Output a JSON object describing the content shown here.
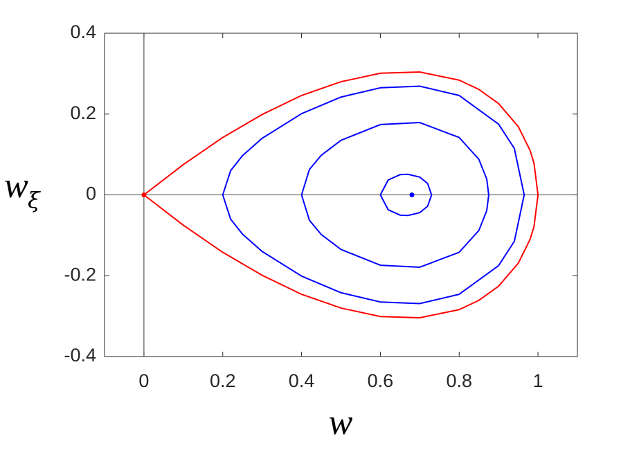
{
  "chart_data": {
    "type": "line",
    "x_label": "w",
    "y_label": "w",
    "y_label_subscript": "ξ",
    "xlim": [
      -0.1,
      1.1
    ],
    "xticks": [
      0,
      0.2,
      0.4,
      0.6,
      0.8,
      1
    ],
    "ylim": [
      -0.4,
      0.4
    ],
    "yticks": [
      -0.4,
      -0.2,
      0,
      0.2,
      0.4
    ],
    "reference_lines": {
      "x": 0,
      "y": 0
    },
    "series": [
      {
        "color": "#ff0000",
        "x": [
          0,
          0.1,
          0.2,
          0.3,
          0.4,
          0.5,
          0.6,
          0.7,
          0.8,
          0.85,
          0.9,
          0.95,
          0.98,
          0.99,
          1,
          0.99,
          0.98,
          0.95,
          0.9,
          0.85,
          0.8,
          0.7,
          0.6,
          0.5,
          0.4,
          0.3,
          0.2,
          0.1,
          0
        ],
        "values": [
          0,
          0.075,
          0.142,
          0.199,
          0.246,
          0.28,
          0.301,
          0.304,
          0.284,
          0.261,
          0.226,
          0.169,
          0.11,
          0.078,
          0,
          -0.078,
          -0.11,
          -0.169,
          -0.226,
          -0.261,
          -0.284,
          -0.304,
          -0.301,
          -0.28,
          -0.246,
          -0.199,
          -0.142,
          -0.075,
          0
        ]
      },
      {
        "color": "#0000ff",
        "x": [
          0.2,
          0.22,
          0.25,
          0.3,
          0.4,
          0.5,
          0.6,
          0.7,
          0.8,
          0.9,
          0.94,
          0.965,
          0.94,
          0.9,
          0.8,
          0.7,
          0.6,
          0.5,
          0.4,
          0.3,
          0.25,
          0.22,
          0.2
        ],
        "values": [
          0,
          0.06,
          0.097,
          0.14,
          0.201,
          0.242,
          0.265,
          0.269,
          0.246,
          0.175,
          0.115,
          0,
          -0.115,
          -0.175,
          -0.246,
          -0.269,
          -0.265,
          -0.242,
          -0.201,
          -0.14,
          -0.097,
          -0.06,
          0
        ]
      },
      {
        "color": "#0000ff",
        "x": [
          0.4,
          0.42,
          0.45,
          0.5,
          0.6,
          0.7,
          0.8,
          0.85,
          0.87,
          0.875,
          0.87,
          0.85,
          0.8,
          0.7,
          0.6,
          0.5,
          0.45,
          0.42,
          0.4
        ],
        "values": [
          0,
          0.063,
          0.098,
          0.135,
          0.174,
          0.179,
          0.142,
          0.088,
          0.039,
          0,
          -0.039,
          -0.088,
          -0.142,
          -0.179,
          -0.174,
          -0.135,
          -0.098,
          -0.063,
          0
        ]
      },
      {
        "color": "#0000ff",
        "x": [
          0.6,
          0.62,
          0.65,
          0.67,
          0.7,
          0.72,
          0.73,
          0.72,
          0.7,
          0.67,
          0.65,
          0.62,
          0.6
        ],
        "values": [
          0,
          0.037,
          0.05,
          0.051,
          0.044,
          0.028,
          0,
          -0.028,
          -0.044,
          -0.051,
          -0.05,
          -0.037,
          0
        ]
      }
    ],
    "points": [
      {
        "color": "#ff0000",
        "x": 0,
        "y": 0
      },
      {
        "color": "#0000ff",
        "x": 0.68,
        "y": 0
      }
    ]
  }
}
